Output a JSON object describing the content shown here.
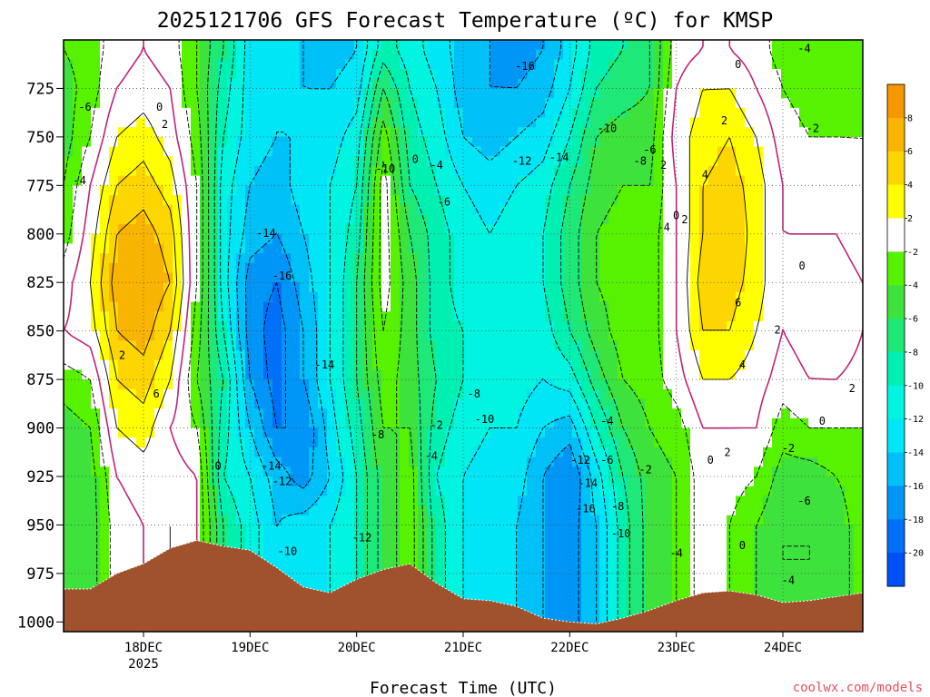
{
  "chart_data": {
    "type": "heatmap",
    "title": "2025121706 GFS Forecast Temperature (ºC) for KMSP",
    "xlabel": "Forecast Time (UTC)",
    "ylabel": "",
    "x_ticks": [
      {
        "label": "18DEC",
        "sub": "2025",
        "day": 1
      },
      {
        "label": "19DEC",
        "sub": "",
        "day": 2
      },
      {
        "label": "20DEC",
        "sub": "",
        "day": 3
      },
      {
        "label": "21DEC",
        "sub": "",
        "day": 4
      },
      {
        "label": "22DEC",
        "sub": "",
        "day": 5
      },
      {
        "label": "23DEC",
        "sub": "",
        "day": 6
      },
      {
        "label": "24DEC",
        "sub": "",
        "day": 7
      }
    ],
    "x_range_days": [
      0.25,
      7.75
    ],
    "y_ticks": [
      725,
      750,
      775,
      800,
      825,
      850,
      875,
      900,
      925,
      950,
      975,
      1000
    ],
    "y_range_hpa": [
      700,
      1005
    ],
    "grid": "dotted",
    "colorbar": {
      "ticks": [
        8,
        6,
        4,
        2,
        -2,
        -4,
        -6,
        -8,
        -10,
        -12,
        -14,
        -16,
        -18,
        -20
      ],
      "bins": [
        {
          "min": 8,
          "max": 10,
          "color": "#f59700"
        },
        {
          "min": 6,
          "max": 8,
          "color": "#f8b400"
        },
        {
          "min": 4,
          "max": 6,
          "color": "#fdd500"
        },
        {
          "min": 2,
          "max": 4,
          "color": "#ffff00"
        },
        {
          "min": -2,
          "max": 2,
          "color": "#ffffff"
        },
        {
          "min": -4,
          "max": -2,
          "color": "#56f200"
        },
        {
          "min": -6,
          "max": -4,
          "color": "#3ee23d"
        },
        {
          "min": -8,
          "max": -6,
          "color": "#1ee878"
        },
        {
          "min": -10,
          "max": -8,
          "color": "#00f0b2"
        },
        {
          "min": -12,
          "max": -10,
          "color": "#00f4e0"
        },
        {
          "min": -14,
          "max": -12,
          "color": "#00e6f6"
        },
        {
          "min": -16,
          "max": -14,
          "color": "#00c0f8"
        },
        {
          "min": -18,
          "max": -16,
          "color": "#0096f8"
        },
        {
          "min": -20,
          "max": -18,
          "color": "#0070f8"
        },
        {
          "min": -22,
          "max": -20,
          "color": "#0050f5"
        }
      ]
    },
    "terrain_color": "#a0522d",
    "zero_contour_color": "#c0227a",
    "surface_pressure": [
      {
        "day": 0.25,
        "p": 983
      },
      {
        "day": 0.5,
        "p": 983
      },
      {
        "day": 0.75,
        "p": 975
      },
      {
        "day": 1.0,
        "p": 970
      },
      {
        "day": 1.25,
        "p": 962
      },
      {
        "day": 1.5,
        "p": 958
      },
      {
        "day": 1.75,
        "p": 961
      },
      {
        "day": 2.0,
        "p": 963
      },
      {
        "day": 2.25,
        "p": 972
      },
      {
        "day": 2.5,
        "p": 982
      },
      {
        "day": 2.75,
        "p": 985
      },
      {
        "day": 3.0,
        "p": 978
      },
      {
        "day": 3.25,
        "p": 973
      },
      {
        "day": 3.5,
        "p": 970
      },
      {
        "day": 3.75,
        "p": 980
      },
      {
        "day": 4.0,
        "p": 988
      },
      {
        "day": 4.25,
        "p": 989
      },
      {
        "day": 4.5,
        "p": 992
      },
      {
        "day": 4.75,
        "p": 998
      },
      {
        "day": 5.0,
        "p": 1000
      },
      {
        "day": 5.25,
        "p": 1001
      },
      {
        "day": 5.5,
        "p": 998
      },
      {
        "day": 5.75,
        "p": 994
      },
      {
        "day": 6.0,
        "p": 989
      },
      {
        "day": 6.25,
        "p": 985
      },
      {
        "day": 6.5,
        "p": 984
      },
      {
        "day": 6.75,
        "p": 986
      },
      {
        "day": 7.0,
        "p": 990
      },
      {
        "day": 7.25,
        "p": 989
      },
      {
        "day": 7.5,
        "p": 987
      },
      {
        "day": 7.75,
        "p": 985
      }
    ],
    "profiles": [
      {
        "day": 0.25,
        "levels": [
          -4,
          -5,
          -5,
          -4,
          -3,
          -1,
          0,
          -3,
          -5,
          -6,
          -5,
          -5
        ]
      },
      {
        "day": 0.5,
        "levels": [
          -3,
          -3,
          -2,
          0,
          1,
          2,
          1,
          -2,
          -4,
          -5,
          -5,
          -5
        ]
      },
      {
        "day": 0.75,
        "levels": [
          -1,
          0,
          2,
          4,
          6,
          7,
          6,
          4,
          2,
          0,
          -1,
          -1
        ]
      },
      {
        "day": 1.0,
        "levels": [
          0,
          1,
          3,
          5,
          7,
          8,
          7,
          5,
          3,
          1,
          0,
          0
        ]
      },
      {
        "day": 1.25,
        "levels": [
          -1,
          0,
          1,
          3,
          5,
          6,
          4,
          2,
          0,
          1,
          2,
          2
        ]
      },
      {
        "day": 1.5,
        "levels": [
          -4,
          -4,
          -3,
          -2,
          -2,
          -2,
          -3,
          -4,
          -2,
          0,
          0,
          0
        ]
      },
      {
        "day": 1.75,
        "levels": [
          -8,
          -9,
          -10,
          -11,
          -11,
          -11,
          -10,
          -8,
          -9,
          -10,
          -8,
          -8
        ]
      },
      {
        "day": 2.0,
        "levels": [
          -13,
          -13,
          -13,
          -14,
          -15,
          -17,
          -17,
          -16,
          -14,
          -12,
          -11,
          -11
        ]
      },
      {
        "day": 2.25,
        "levels": [
          -14,
          -14,
          -14,
          -15,
          -16,
          -18,
          -19,
          -19,
          -18,
          -15,
          -14,
          -14
        ]
      },
      {
        "day": 2.5,
        "levels": [
          -14,
          -14,
          -14,
          -13,
          -14,
          -15,
          -16,
          -16,
          -18,
          -17,
          -13,
          -13
        ]
      },
      {
        "day": 2.75,
        "levels": [
          -15,
          -14,
          -13,
          -12,
          -12,
          -12,
          -12,
          -12,
          -13,
          -14,
          -12,
          -12
        ]
      },
      {
        "day": 3.0,
        "levels": [
          -14,
          -13,
          -11,
          -10,
          -9,
          -8,
          -8,
          -8,
          -9,
          -10,
          -10,
          -10
        ]
      },
      {
        "day": 3.25,
        "levels": [
          -9,
          -6,
          -3,
          -1,
          -1,
          -1,
          -2,
          -3,
          -4,
          -5,
          -5,
          -5
        ]
      },
      {
        "day": 3.5,
        "levels": [
          -11,
          -10,
          -9,
          -8,
          -6,
          -5,
          -5,
          -5,
          -4,
          -3,
          -3,
          -3
        ]
      },
      {
        "day": 3.75,
        "levels": [
          -13,
          -12,
          -11,
          -10,
          -9,
          -9,
          -9,
          -8,
          -9,
          -10,
          -9,
          -9
        ]
      },
      {
        "day": 4.0,
        "levels": [
          -15,
          -15,
          -14,
          -12,
          -11,
          -11,
          -10,
          -10,
          -11,
          -12,
          -12,
          -12
        ]
      },
      {
        "day": 4.25,
        "levels": [
          -16,
          -16,
          -15,
          -13,
          -12,
          -11,
          -11,
          -11,
          -12,
          -13,
          -13,
          -13
        ]
      },
      {
        "day": 4.5,
        "levels": [
          -17,
          -16,
          -14,
          -12,
          -11,
          -11,
          -11,
          -11,
          -12,
          -13,
          -14,
          -14
        ]
      },
      {
        "day": 4.75,
        "levels": [
          -16,
          -15,
          -13,
          -11,
          -10,
          -10,
          -11,
          -12,
          -14,
          -16,
          -16,
          -16
        ]
      },
      {
        "day": 5.0,
        "levels": [
          -13,
          -12,
          -10,
          -8,
          -7,
          -7,
          -8,
          -11,
          -15,
          -18,
          -17,
          -17
        ]
      },
      {
        "day": 5.25,
        "levels": [
          -9,
          -8,
          -6,
          -5,
          -4,
          -4,
          -5,
          -7,
          -10,
          -13,
          -14,
          -14
        ]
      },
      {
        "day": 5.5,
        "levels": [
          -8,
          -7,
          -5,
          -4,
          -3,
          -3,
          -3,
          -4,
          -6,
          -8,
          -9,
          -9
        ]
      },
      {
        "day": 5.75,
        "levels": [
          -6,
          -6,
          -5,
          -4,
          -3,
          -3,
          -3,
          -3,
          -4,
          -5,
          -5,
          -5
        ]
      },
      {
        "day": 6.0,
        "levels": [
          -1,
          0,
          1,
          0,
          0,
          0,
          0,
          -1,
          -3,
          -4,
          -4,
          -4
        ]
      },
      {
        "day": 6.25,
        "levels": [
          0,
          2,
          3,
          4,
          4,
          5,
          4,
          2,
          0,
          -1,
          -1,
          -1
        ]
      },
      {
        "day": 6.5,
        "levels": [
          0,
          2,
          4,
          5,
          6,
          5,
          4,
          2,
          0,
          -1,
          -2,
          -2
        ]
      },
      {
        "day": 6.75,
        "levels": [
          -1,
          0,
          2,
          3,
          3,
          3,
          2,
          1,
          0,
          -2,
          -4,
          -4
        ]
      },
      {
        "day": 7.0,
        "levels": [
          -3,
          -2,
          -1,
          0,
          0,
          0,
          0,
          -1,
          -3,
          -5,
          -6,
          -6
        ]
      },
      {
        "day": 7.25,
        "levels": [
          -3,
          -3,
          -2,
          -1,
          0,
          1,
          1,
          0,
          -2,
          -5,
          -6,
          -6
        ]
      },
      {
        "day": 7.5,
        "levels": [
          -4,
          -3,
          -2,
          -1,
          0,
          1,
          2,
          0,
          -2,
          -4,
          -5,
          -5
        ]
      },
      {
        "day": 7.75,
        "levels": [
          -4,
          -3,
          -2,
          -2,
          -1,
          0,
          0,
          -1,
          -2,
          -3,
          -3,
          -3
        ]
      }
    ],
    "profile_pressures": [
      705,
      725,
      750,
      775,
      800,
      825,
      850,
      875,
      900,
      925,
      950,
      1000
    ],
    "contour_labels": [
      {
        "text": "-6",
        "day": 0.45,
        "p": 735
      },
      {
        "text": "0",
        "day": 1.15,
        "p": 735
      },
      {
        "text": "2",
        "day": 1.2,
        "p": 744
      },
      {
        "text": "-4",
        "day": 0.4,
        "p": 773
      },
      {
        "text": "2",
        "day": 0.8,
        "p": 863
      },
      {
        "text": "6",
        "day": 1.12,
        "p": 883
      },
      {
        "text": "0",
        "day": 1.7,
        "p": 920
      },
      {
        "text": "-14",
        "day": 2.15,
        "p": 800
      },
      {
        "text": "-16",
        "day": 2.3,
        "p": 822
      },
      {
        "text": "-14",
        "day": 2.7,
        "p": 868
      },
      {
        "text": "-14",
        "day": 2.2,
        "p": 920
      },
      {
        "text": "-12",
        "day": 2.3,
        "p": 928
      },
      {
        "text": "-10",
        "day": 2.35,
        "p": 964
      },
      {
        "text": "-10",
        "day": 3.27,
        "p": 767
      },
      {
        "text": "0",
        "day": 3.55,
        "p": 762
      },
      {
        "text": "-4",
        "day": 3.75,
        "p": 765
      },
      {
        "text": "-6",
        "day": 3.82,
        "p": 784
      },
      {
        "text": "-8",
        "day": 3.2,
        "p": 904
      },
      {
        "text": "-12",
        "day": 3.05,
        "p": 957
      },
      {
        "text": "-8",
        "day": 4.1,
        "p": 883
      },
      {
        "text": "-10",
        "day": 4.2,
        "p": 896
      },
      {
        "text": "-2",
        "day": 3.75,
        "p": 899
      },
      {
        "text": "-4",
        "day": 3.7,
        "p": 915
      },
      {
        "text": "-16",
        "day": 4.58,
        "p": 714
      },
      {
        "text": "-12",
        "day": 4.55,
        "p": 763
      },
      {
        "text": "-14",
        "day": 4.9,
        "p": 761
      },
      {
        "text": "-10",
        "day": 5.35,
        "p": 746
      },
      {
        "text": "-6",
        "day": 5.75,
        "p": 757
      },
      {
        "text": "-8",
        "day": 5.66,
        "p": 763
      },
      {
        "text": "2",
        "day": 5.88,
        "p": 765
      },
      {
        "text": "-4",
        "day": 5.88,
        "p": 797
      },
      {
        "text": "0",
        "day": 6.0,
        "p": 791
      },
      {
        "text": "2",
        "day": 6.08,
        "p": 793
      },
      {
        "text": "-4",
        "day": 5.35,
        "p": 897
      },
      {
        "text": "-12",
        "day": 5.1,
        "p": 917
      },
      {
        "text": "-6",
        "day": 5.35,
        "p": 917
      },
      {
        "text": "-14",
        "day": 5.17,
        "p": 929
      },
      {
        "text": "-2",
        "day": 5.71,
        "p": 922
      },
      {
        "text": "-16",
        "day": 5.15,
        "p": 942
      },
      {
        "text": "-8",
        "day": 5.45,
        "p": 941
      },
      {
        "text": "-10",
        "day": 5.48,
        "p": 955
      },
      {
        "text": "-4",
        "day": 6.0,
        "p": 965
      },
      {
        "text": "0",
        "day": 6.58,
        "p": 713
      },
      {
        "text": "2",
        "day": 6.45,
        "p": 742
      },
      {
        "text": "4",
        "day": 6.27,
        "p": 770
      },
      {
        "text": "6",
        "day": 6.58,
        "p": 836
      },
      {
        "text": "2",
        "day": 6.95,
        "p": 850
      },
      {
        "text": "4",
        "day": 6.62,
        "p": 868
      },
      {
        "text": "0",
        "day": 6.32,
        "p": 917
      },
      {
        "text": "2",
        "day": 6.48,
        "p": 913
      },
      {
        "text": "0",
        "day": 6.62,
        "p": 961
      },
      {
        "text": "0",
        "day": 7.18,
        "p": 817
      },
      {
        "text": "-4",
        "day": 7.2,
        "p": 705
      },
      {
        "text": "-2",
        "day": 7.28,
        "p": 746
      },
      {
        "text": "2",
        "day": 7.65,
        "p": 880
      },
      {
        "text": "0",
        "day": 7.37,
        "p": 897
      },
      {
        "text": "-2",
        "day": 7.05,
        "p": 911
      },
      {
        "text": "-6",
        "day": 7.2,
        "p": 938
      },
      {
        "text": "-4",
        "day": 7.05,
        "p": 979
      }
    ]
  },
  "credit": "coolwx.com/models"
}
